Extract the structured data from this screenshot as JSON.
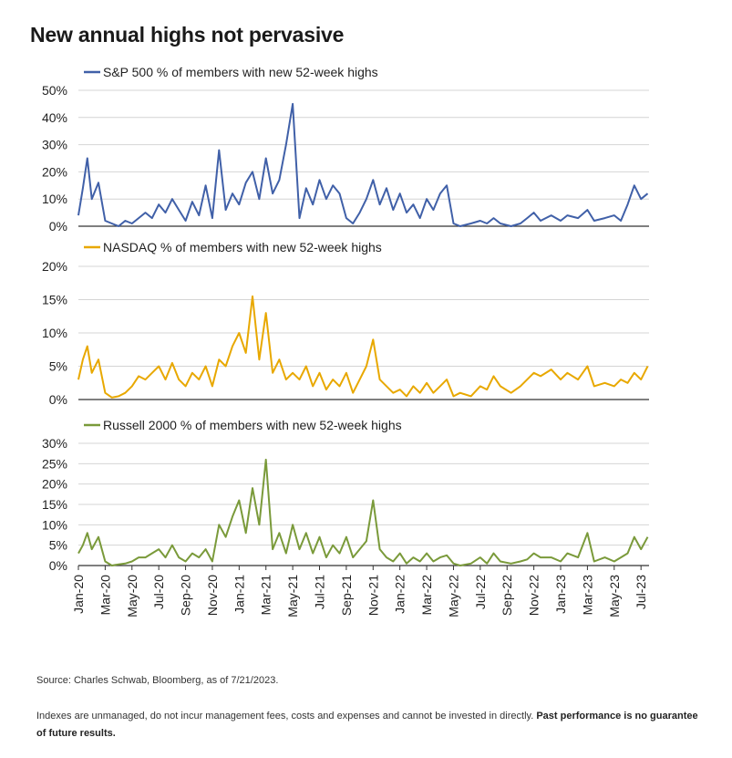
{
  "title": "New annual highs not pervasive",
  "chart_data": {
    "type": "line",
    "x_ticks": [
      "Jan-20",
      "Mar-20",
      "May-20",
      "Jul-20",
      "Sep-20",
      "Nov-20",
      "Jan-21",
      "Mar-21",
      "May-21",
      "Jul-21",
      "Sep-21",
      "Nov-21",
      "Jan-22",
      "Mar-22",
      "May-22",
      "Jul-22",
      "Sep-22",
      "Nov-22",
      "Jan-23",
      "Mar-23",
      "May-23",
      "Jul-23"
    ],
    "panels": [
      {
        "legend": "S&P 500 % of members with new 52-week highs",
        "color": "#4060a8",
        "y_ticks": [
          "0%",
          "10%",
          "20%",
          "30%",
          "40%",
          "50%"
        ],
        "ylim": [
          0,
          50
        ],
        "grid": true,
        "series": {
          "name": "S&P 500 % of members with new 52-week highs",
          "points": [
            [
              "Jan-20",
              4
            ],
            [
              "Jan-20",
              14
            ],
            [
              "Jan-20",
              25
            ],
            [
              "Feb-20",
              10
            ],
            [
              "Feb-20",
              16
            ],
            [
              "Mar-20",
              2
            ],
            [
              "Mar-20",
              1
            ],
            [
              "Apr-20",
              0
            ],
            [
              "Apr-20",
              2
            ],
            [
              "May-20",
              1
            ],
            [
              "May-20",
              3
            ],
            [
              "Jun-20",
              5
            ],
            [
              "Jun-20",
              3
            ],
            [
              "Jul-20",
              8
            ],
            [
              "Jul-20",
              5
            ],
            [
              "Aug-20",
              10
            ],
            [
              "Aug-20",
              6
            ],
            [
              "Sep-20",
              2
            ],
            [
              "Sep-20",
              9
            ],
            [
              "Oct-20",
              4
            ],
            [
              "Oct-20",
              15
            ],
            [
              "Nov-20",
              3
            ],
            [
              "Nov-20",
              28
            ],
            [
              "Dec-20",
              6
            ],
            [
              "Dec-20",
              12
            ],
            [
              "Jan-21",
              8
            ],
            [
              "Jan-21",
              16
            ],
            [
              "Feb-21",
              20
            ],
            [
              "Feb-21",
              10
            ],
            [
              "Mar-21",
              25
            ],
            [
              "Mar-21",
              12
            ],
            [
              "Apr-21",
              17
            ],
            [
              "Apr-21",
              30
            ],
            [
              "May-21",
              45
            ],
            [
              "May-21",
              3
            ],
            [
              "Jun-21",
              14
            ],
            [
              "Jun-21",
              8
            ],
            [
              "Jul-21",
              17
            ],
            [
              "Jul-21",
              10
            ],
            [
              "Aug-21",
              15
            ],
            [
              "Aug-21",
              12
            ],
            [
              "Sep-21",
              3
            ],
            [
              "Sep-21",
              1
            ],
            [
              "Oct-21",
              5
            ],
            [
              "Oct-21",
              10
            ],
            [
              "Nov-21",
              17
            ],
            [
              "Nov-21",
              8
            ],
            [
              "Dec-21",
              14
            ],
            [
              "Dec-21",
              6
            ],
            [
              "Jan-22",
              12
            ],
            [
              "Jan-22",
              5
            ],
            [
              "Feb-22",
              8
            ],
            [
              "Feb-22",
              3
            ],
            [
              "Mar-22",
              10
            ],
            [
              "Mar-22",
              6
            ],
            [
              "Apr-22",
              12
            ],
            [
              "Apr-22",
              15
            ],
            [
              "May-22",
              1
            ],
            [
              "May-22",
              0
            ],
            [
              "Jun-22",
              1
            ],
            [
              "Jul-22",
              2
            ],
            [
              "Jul-22",
              1
            ],
            [
              "Aug-22",
              3
            ],
            [
              "Aug-22",
              1
            ],
            [
              "Sep-22",
              0
            ],
            [
              "Oct-22",
              1
            ],
            [
              "Oct-22",
              3
            ],
            [
              "Nov-22",
              5
            ],
            [
              "Nov-22",
              2
            ],
            [
              "Dec-22",
              4
            ],
            [
              "Jan-23",
              2
            ],
            [
              "Jan-23",
              4
            ],
            [
              "Feb-23",
              3
            ],
            [
              "Mar-23",
              6
            ],
            [
              "Mar-23",
              2
            ],
            [
              "Apr-23",
              3
            ],
            [
              "May-23",
              4
            ],
            [
              "May-23",
              2
            ],
            [
              "Jun-23",
              8
            ],
            [
              "Jun-23",
              15
            ],
            [
              "Jul-23",
              10
            ],
            [
              "Jul-23",
              12
            ]
          ]
        }
      },
      {
        "legend": "NASDAQ % of members with new 52-week highs",
        "color": "#e8a800",
        "y_ticks": [
          "0%",
          "5%",
          "10%",
          "15%",
          "20%"
        ],
        "ylim": [
          0,
          20
        ],
        "grid": true,
        "series": {
          "name": "NASDAQ % of members with new 52-week highs",
          "points": [
            [
              "Jan-20",
              3
            ],
            [
              "Jan-20",
              6
            ],
            [
              "Jan-20",
              8
            ],
            [
              "Feb-20",
              4
            ],
            [
              "Feb-20",
              6
            ],
            [
              "Mar-20",
              1
            ],
            [
              "Mar-20",
              0.3
            ],
            [
              "Apr-20",
              0.5
            ],
            [
              "Apr-20",
              1
            ],
            [
              "May-20",
              2
            ],
            [
              "May-20",
              3.5
            ],
            [
              "Jun-20",
              3
            ],
            [
              "Jun-20",
              4
            ],
            [
              "Jul-20",
              5
            ],
            [
              "Jul-20",
              3
            ],
            [
              "Aug-20",
              5.5
            ],
            [
              "Aug-20",
              3
            ],
            [
              "Sep-20",
              2
            ],
            [
              "Sep-20",
              4
            ],
            [
              "Oct-20",
              3
            ],
            [
              "Oct-20",
              5
            ],
            [
              "Nov-20",
              2
            ],
            [
              "Nov-20",
              6
            ],
            [
              "Dec-20",
              5
            ],
            [
              "Dec-20",
              8
            ],
            [
              "Jan-21",
              10
            ],
            [
              "Jan-21",
              7
            ],
            [
              "Feb-21",
              15.5
            ],
            [
              "Feb-21",
              6
            ],
            [
              "Mar-21",
              13
            ],
            [
              "Mar-21",
              4
            ],
            [
              "Apr-21",
              6
            ],
            [
              "Apr-21",
              3
            ],
            [
              "May-21",
              4
            ],
            [
              "May-21",
              3
            ],
            [
              "Jun-21",
              5
            ],
            [
              "Jun-21",
              2
            ],
            [
              "Jul-21",
              4
            ],
            [
              "Jul-21",
              1.5
            ],
            [
              "Aug-21",
              3
            ],
            [
              "Aug-21",
              2
            ],
            [
              "Sep-21",
              4
            ],
            [
              "Sep-21",
              1
            ],
            [
              "Oct-21",
              3
            ],
            [
              "Oct-21",
              5
            ],
            [
              "Nov-21",
              9
            ],
            [
              "Nov-21",
              3
            ],
            [
              "Dec-21",
              2
            ],
            [
              "Dec-21",
              1
            ],
            [
              "Jan-22",
              1.5
            ],
            [
              "Jan-22",
              0.5
            ],
            [
              "Feb-22",
              2
            ],
            [
              "Feb-22",
              1
            ],
            [
              "Mar-22",
              2.5
            ],
            [
              "Mar-22",
              1
            ],
            [
              "Apr-22",
              2
            ],
            [
              "Apr-22",
              3
            ],
            [
              "May-22",
              0.5
            ],
            [
              "May-22",
              1
            ],
            [
              "Jun-22",
              0.5
            ],
            [
              "Jul-22",
              2
            ],
            [
              "Jul-22",
              1.5
            ],
            [
              "Aug-22",
              3.5
            ],
            [
              "Aug-22",
              2
            ],
            [
              "Sep-22",
              1
            ],
            [
              "Oct-22",
              2
            ],
            [
              "Oct-22",
              3
            ],
            [
              "Nov-22",
              4
            ],
            [
              "Nov-22",
              3.5
            ],
            [
              "Dec-22",
              4.5
            ],
            [
              "Jan-23",
              3
            ],
            [
              "Jan-23",
              4
            ],
            [
              "Feb-23",
              3
            ],
            [
              "Mar-23",
              5
            ],
            [
              "Mar-23",
              2
            ],
            [
              "Apr-23",
              2.5
            ],
            [
              "May-23",
              2
            ],
            [
              "May-23",
              3
            ],
            [
              "Jun-23",
              2.5
            ],
            [
              "Jun-23",
              4
            ],
            [
              "Jul-23",
              3
            ],
            [
              "Jul-23",
              5
            ]
          ]
        }
      },
      {
        "legend": "Russell 2000 % of members with new 52-week highs",
        "color": "#7a9a3a",
        "y_ticks": [
          "0%",
          "5%",
          "10%",
          "15%",
          "20%",
          "25%",
          "30%"
        ],
        "ylim": [
          0,
          30
        ],
        "grid": true,
        "series": {
          "name": "Russell 2000 % of members with new 52-week highs",
          "points": [
            [
              "Jan-20",
              3
            ],
            [
              "Jan-20",
              5
            ],
            [
              "Jan-20",
              8
            ],
            [
              "Feb-20",
              4
            ],
            [
              "Feb-20",
              7
            ],
            [
              "Mar-20",
              1
            ],
            [
              "Mar-20",
              0
            ],
            [
              "Apr-20",
              0.3
            ],
            [
              "Apr-20",
              0.5
            ],
            [
              "May-20",
              1
            ],
            [
              "May-20",
              2
            ],
            [
              "Jun-20",
              2
            ],
            [
              "Jun-20",
              3
            ],
            [
              "Jul-20",
              4
            ],
            [
              "Jul-20",
              2
            ],
            [
              "Aug-20",
              5
            ],
            [
              "Aug-20",
              2
            ],
            [
              "Sep-20",
              1
            ],
            [
              "Sep-20",
              3
            ],
            [
              "Oct-20",
              2
            ],
            [
              "Oct-20",
              4
            ],
            [
              "Nov-20",
              1
            ],
            [
              "Nov-20",
              10
            ],
            [
              "Dec-20",
              7
            ],
            [
              "Dec-20",
              12
            ],
            [
              "Jan-21",
              16
            ],
            [
              "Jan-21",
              8
            ],
            [
              "Feb-21",
              19
            ],
            [
              "Feb-21",
              10
            ],
            [
              "Mar-21",
              26
            ],
            [
              "Mar-21",
              4
            ],
            [
              "Apr-21",
              8
            ],
            [
              "Apr-21",
              3
            ],
            [
              "May-21",
              10
            ],
            [
              "May-21",
              4
            ],
            [
              "Jun-21",
              8
            ],
            [
              "Jun-21",
              3
            ],
            [
              "Jul-21",
              7
            ],
            [
              "Jul-21",
              2
            ],
            [
              "Aug-21",
              5
            ],
            [
              "Aug-21",
              3
            ],
            [
              "Sep-21",
              7
            ],
            [
              "Sep-21",
              2
            ],
            [
              "Oct-21",
              4
            ],
            [
              "Oct-21",
              6
            ],
            [
              "Nov-21",
              16
            ],
            [
              "Nov-21",
              4
            ],
            [
              "Dec-21",
              2
            ],
            [
              "Dec-21",
              1
            ],
            [
              "Jan-22",
              3
            ],
            [
              "Jan-22",
              0.5
            ],
            [
              "Feb-22",
              2
            ],
            [
              "Feb-22",
              1
            ],
            [
              "Mar-22",
              3
            ],
            [
              "Mar-22",
              1
            ],
            [
              "Apr-22",
              2
            ],
            [
              "Apr-22",
              2.5
            ],
            [
              "May-22",
              0.5
            ],
            [
              "May-22",
              0
            ],
            [
              "Jun-22",
              0.5
            ],
            [
              "Jul-22",
              2
            ],
            [
              "Jul-22",
              0.5
            ],
            [
              "Aug-22",
              3
            ],
            [
              "Aug-22",
              1
            ],
            [
              "Sep-22",
              0.5
            ],
            [
              "Oct-22",
              1
            ],
            [
              "Oct-22",
              1.5
            ],
            [
              "Nov-22",
              3
            ],
            [
              "Nov-22",
              2
            ],
            [
              "Dec-22",
              2
            ],
            [
              "Jan-23",
              1
            ],
            [
              "Jan-23",
              3
            ],
            [
              "Feb-23",
              2
            ],
            [
              "Mar-23",
              8
            ],
            [
              "Mar-23",
              1
            ],
            [
              "Apr-23",
              2
            ],
            [
              "May-23",
              1
            ],
            [
              "May-23",
              2
            ],
            [
              "Jun-23",
              3
            ],
            [
              "Jun-23",
              7
            ],
            [
              "Jul-23",
              4
            ],
            [
              "Jul-23",
              7
            ]
          ]
        }
      }
    ]
  },
  "source": "Source: Charles Schwab, Bloomberg, as of 7/21/2023.",
  "disclaimer": "Indexes are unmanaged, do not incur management fees, costs and expenses and cannot be invested in directly.",
  "disclaimer_bold": "Past performance is no guarantee of future results."
}
